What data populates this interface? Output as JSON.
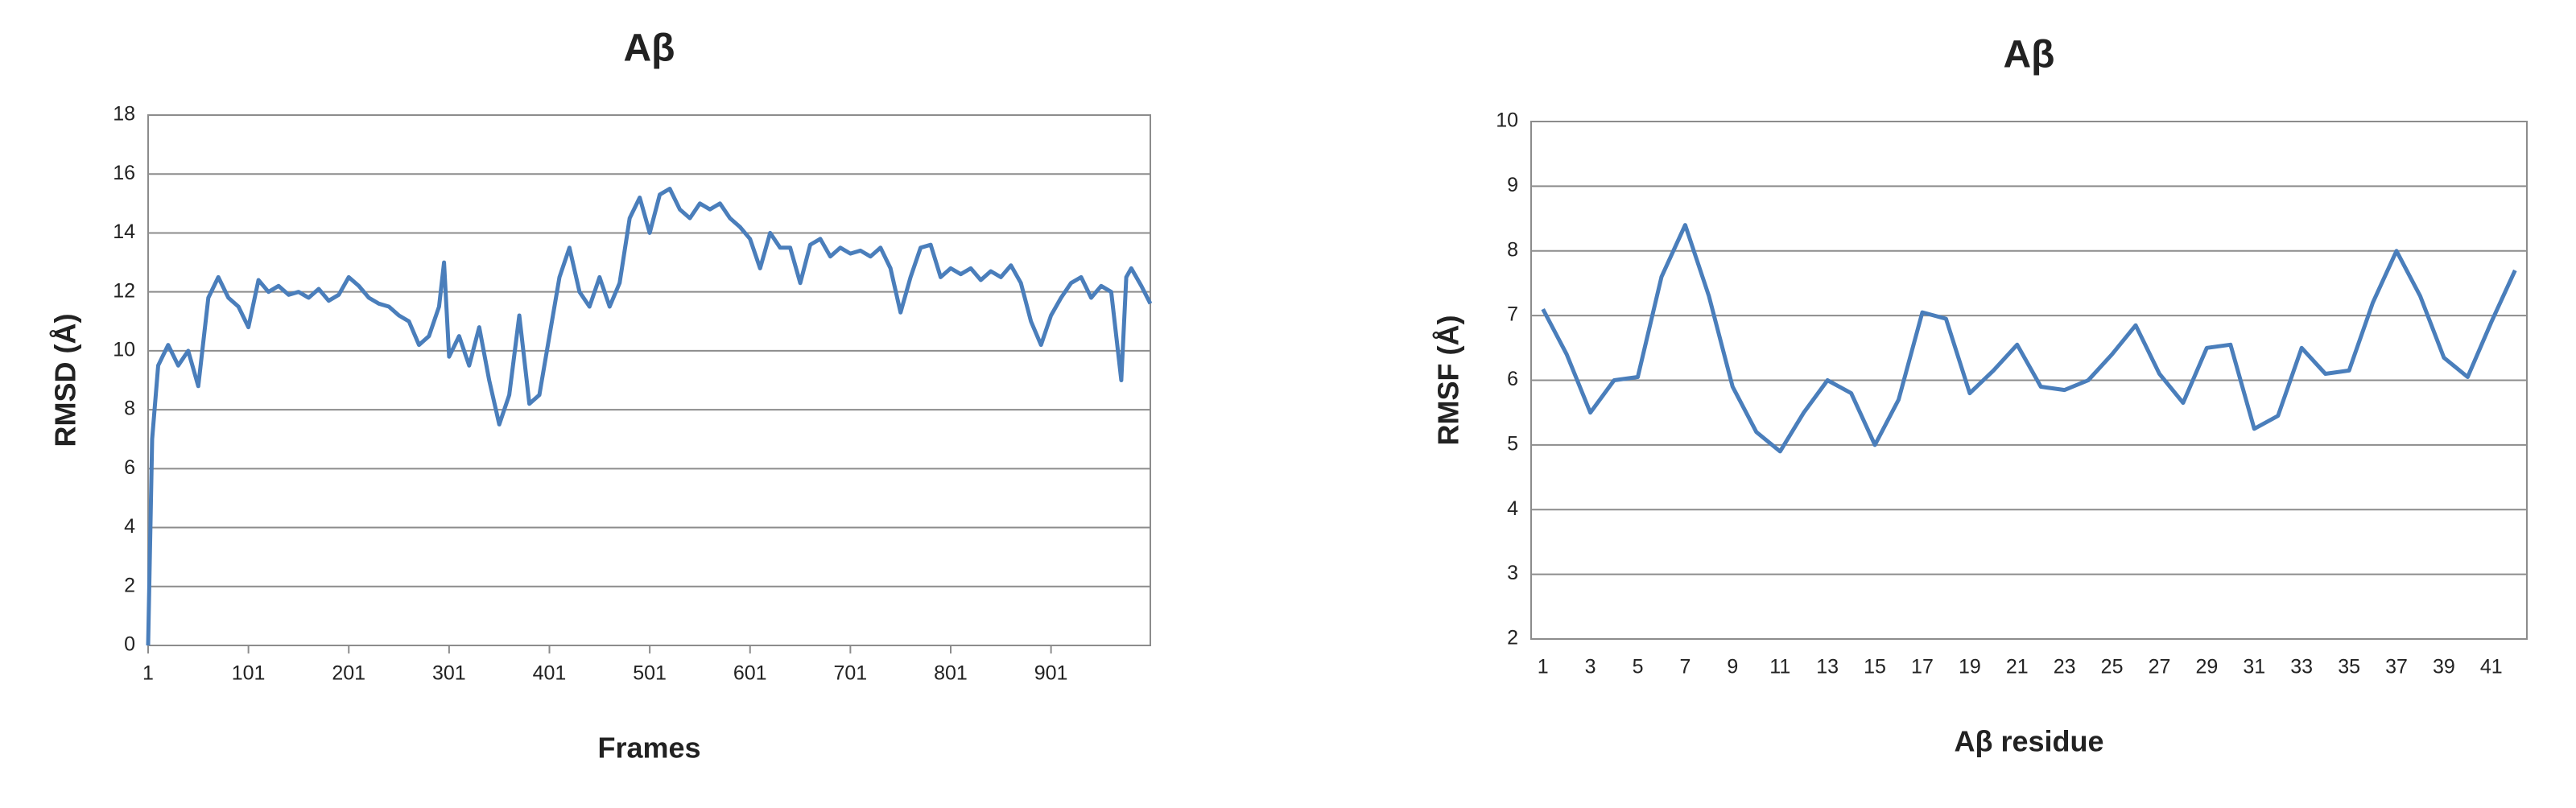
{
  "chart_data": [
    {
      "type": "line",
      "title": "Aβ",
      "x_label": "Frames",
      "y_label": "RMSD (Å)",
      "x": [
        1,
        5,
        11,
        21,
        31,
        41,
        51,
        61,
        71,
        81,
        91,
        101,
        111,
        121,
        131,
        141,
        151,
        161,
        171,
        181,
        191,
        201,
        211,
        221,
        231,
        241,
        251,
        261,
        271,
        281,
        291,
        296,
        301,
        311,
        321,
        331,
        341,
        351,
        361,
        371,
        381,
        391,
        401,
        411,
        421,
        431,
        441,
        451,
        461,
        471,
        481,
        491,
        501,
        511,
        521,
        531,
        541,
        551,
        561,
        571,
        581,
        591,
        601,
        611,
        621,
        631,
        641,
        651,
        661,
        671,
        681,
        691,
        701,
        711,
        721,
        731,
        741,
        751,
        761,
        771,
        781,
        791,
        801,
        811,
        821,
        831,
        841,
        851,
        861,
        871,
        881,
        891,
        901,
        911,
        921,
        931,
        941,
        951,
        961,
        971,
        976,
        981,
        991,
        1000
      ],
      "series": [
        {
          "name": "RMSD",
          "color": "#4a7ebb",
          "values": [
            0,
            7,
            9.5,
            10.2,
            9.5,
            10,
            8.8,
            11.8,
            12.5,
            11.8,
            11.5,
            10.8,
            12.4,
            12,
            12.2,
            11.9,
            12,
            11.8,
            12.1,
            11.7,
            11.9,
            12.5,
            12.2,
            11.8,
            11.6,
            11.5,
            11.2,
            11,
            10.2,
            10.5,
            11.5,
            13,
            9.8,
            10.5,
            9.5,
            10.8,
            9,
            7.5,
            8.5,
            11.2,
            8.2,
            8.5,
            10.5,
            12.5,
            13.5,
            12,
            11.5,
            12.5,
            11.5,
            12.3,
            14.5,
            15.2,
            14,
            15.3,
            15.5,
            14.8,
            14.5,
            15,
            14.8,
            15,
            14.5,
            14.2,
            13.8,
            12.8,
            14,
            13.5,
            13.5,
            12.3,
            13.6,
            13.8,
            13.2,
            13.5,
            13.3,
            13.4,
            13.2,
            13.5,
            12.8,
            11.3,
            12.5,
            13.5,
            13.6,
            12.5,
            12.8,
            12.6,
            12.8,
            12.4,
            12.7,
            12.5,
            12.9,
            12.3,
            11,
            10.2,
            11.2,
            11.8,
            12.3,
            12.5,
            11.8,
            12.2,
            12,
            9,
            12.5,
            12.8,
            12.2,
            11.6
          ]
        }
      ],
      "xlim": [
        1,
        1000
      ],
      "xticks": [
        1,
        101,
        201,
        301,
        401,
        501,
        601,
        701,
        801,
        901
      ],
      "ylim": [
        0,
        18
      ],
      "yticks": [
        0,
        2,
        4,
        6,
        8,
        10,
        12,
        14,
        16,
        18
      ],
      "grid": true
    },
    {
      "type": "line",
      "title": "Aβ",
      "x_label": "Aβ residue",
      "y_label": "RMSF (Å)",
      "categories": [
        "1",
        null,
        "3",
        null,
        "5",
        null,
        "7",
        null,
        "9",
        null,
        "11",
        null,
        "13",
        null,
        "15",
        null,
        "17",
        null,
        "19",
        null,
        "21",
        null,
        "23",
        null,
        "25",
        null,
        "27",
        null,
        "29",
        null,
        "31",
        null,
        "33",
        null,
        "35",
        null,
        "37",
        null,
        "39",
        null,
        "41",
        null
      ],
      "series": [
        {
          "name": "RMSF",
          "color": "#4a7ebb",
          "values": [
            7.1,
            6.4,
            5.5,
            6.0,
            6.05,
            7.6,
            8.4,
            7.3,
            5.9,
            5.2,
            4.9,
            5.5,
            6.0,
            5.8,
            5.0,
            5.7,
            7.05,
            6.95,
            5.8,
            6.15,
            6.55,
            5.9,
            5.85,
            6.0,
            6.4,
            6.85,
            6.1,
            5.65,
            6.5,
            6.55,
            5.25,
            5.45,
            6.5,
            6.1,
            6.15,
            7.2,
            8.0,
            7.3,
            6.35,
            6.05,
            6.9,
            7.7
          ]
        }
      ],
      "ylim": [
        2,
        10
      ],
      "yticks": [
        2,
        3,
        4,
        5,
        6,
        7,
        8,
        9,
        10
      ],
      "grid": true
    }
  ]
}
